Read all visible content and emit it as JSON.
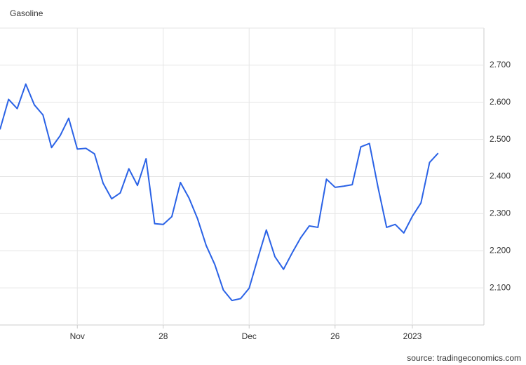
{
  "chart_data": {
    "type": "line",
    "title": "Gasoline",
    "source": "source: tradingeconomics.com",
    "categories": [
      null,
      null,
      null,
      null,
      null,
      null,
      null,
      null,
      null,
      "Nov",
      null,
      null,
      null,
      null,
      null,
      null,
      null,
      null,
      null,
      "28",
      null,
      null,
      null,
      null,
      null,
      null,
      null,
      null,
      null,
      "Dec",
      null,
      null,
      null,
      null,
      null,
      null,
      null,
      null,
      null,
      "26",
      null,
      null,
      null,
      null,
      null,
      null,
      null,
      null,
      "2023",
      null,
      null,
      null
    ],
    "series": [
      {
        "name": "Gasoline",
        "color": "#2a62e6",
        "values": [
          2.527,
          2.608,
          2.583,
          2.649,
          2.593,
          2.566,
          2.478,
          2.51,
          2.557,
          2.474,
          2.476,
          2.461,
          2.382,
          2.34,
          2.356,
          2.421,
          2.376,
          2.448,
          2.273,
          2.271,
          2.292,
          2.384,
          2.342,
          2.286,
          2.214,
          2.163,
          2.094,
          2.066,
          2.071,
          2.099,
          2.179,
          2.256,
          2.184,
          2.15,
          2.194,
          2.235,
          2.267,
          2.263,
          2.393,
          2.371,
          2.374,
          2.378,
          2.48,
          2.489,
          2.371,
          2.263,
          2.271,
          2.248,
          2.293,
          2.329,
          2.438,
          2.463
        ]
      }
    ],
    "ylim": [
      2.0,
      2.8
    ],
    "yticks": [
      {
        "value": 2.1,
        "label": "2.100"
      },
      {
        "value": 2.2,
        "label": "2.200"
      },
      {
        "value": 2.3,
        "label": "2.300"
      },
      {
        "value": 2.4,
        "label": "2.400"
      },
      {
        "value": 2.5,
        "label": "2.500"
      },
      {
        "value": 2.6,
        "label": "2.600"
      },
      {
        "value": 2.7,
        "label": "2.700"
      }
    ],
    "grid": true
  }
}
